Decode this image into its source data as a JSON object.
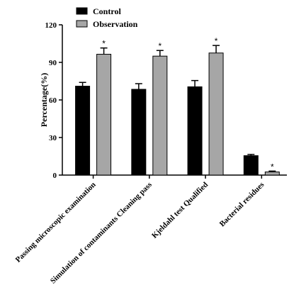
{
  "chart_data": {
    "type": "bar",
    "ylabel": "Percentage(%)",
    "xlabel": "",
    "ylim": [
      0,
      120
    ],
    "yticks": [
      "0",
      "30",
      "60",
      "90",
      "120"
    ],
    "categories": [
      "Passing microscopic examination",
      "Simulation of contaminants Cleaning pass",
      "Kjeldahl test Qualified",
      "Bacterial residues"
    ],
    "series": [
      {
        "name": "Control",
        "color": "#000000",
        "values": [
          71,
          68.5,
          70.5,
          15.5
        ],
        "errors": [
          3,
          4.5,
          5,
          1
        ]
      },
      {
        "name": "Observation",
        "color": "#a6a6a6",
        "values": [
          96.5,
          95,
          97.5,
          2.5
        ],
        "errors": [
          5,
          4.5,
          6,
          0.7
        ]
      }
    ],
    "significance": [
      "*",
      "*",
      "*",
      "*"
    ],
    "legend_position": "top-left",
    "grid": false
  }
}
